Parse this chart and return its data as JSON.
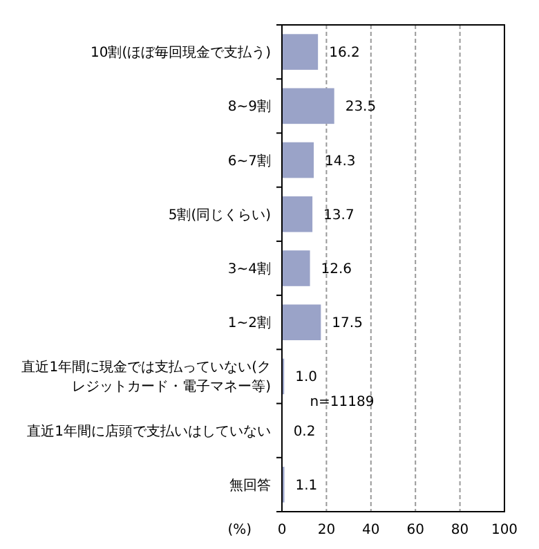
{
  "chart_data": {
    "type": "bar",
    "orientation": "horizontal",
    "categories": [
      "10割(ほぼ毎回現金で支払う)",
      "8~9割",
      "6~7割",
      "5割(同じくらい)",
      "3~4割",
      "1~2割",
      "直近1年間に現金では支払っていない(クレジットカード・電子マネー等)",
      "直近1年間に店頭で支払いはしていない",
      "無回答"
    ],
    "values": [
      16.2,
      23.5,
      14.3,
      13.7,
      12.6,
      17.5,
      1.0,
      0.2,
      1.1
    ],
    "value_labels": [
      "16.2",
      "23.5",
      "14.3",
      "13.7",
      "12.6",
      "17.5",
      "1.0",
      "0.2",
      "1.1"
    ],
    "color": "#9aa3c8",
    "xlim": [
      0,
      100
    ],
    "xticks": [
      0,
      20,
      40,
      60,
      80,
      100
    ],
    "grid": "x",
    "xlabel": "(%)",
    "annotations": [
      "n=11189"
    ]
  }
}
